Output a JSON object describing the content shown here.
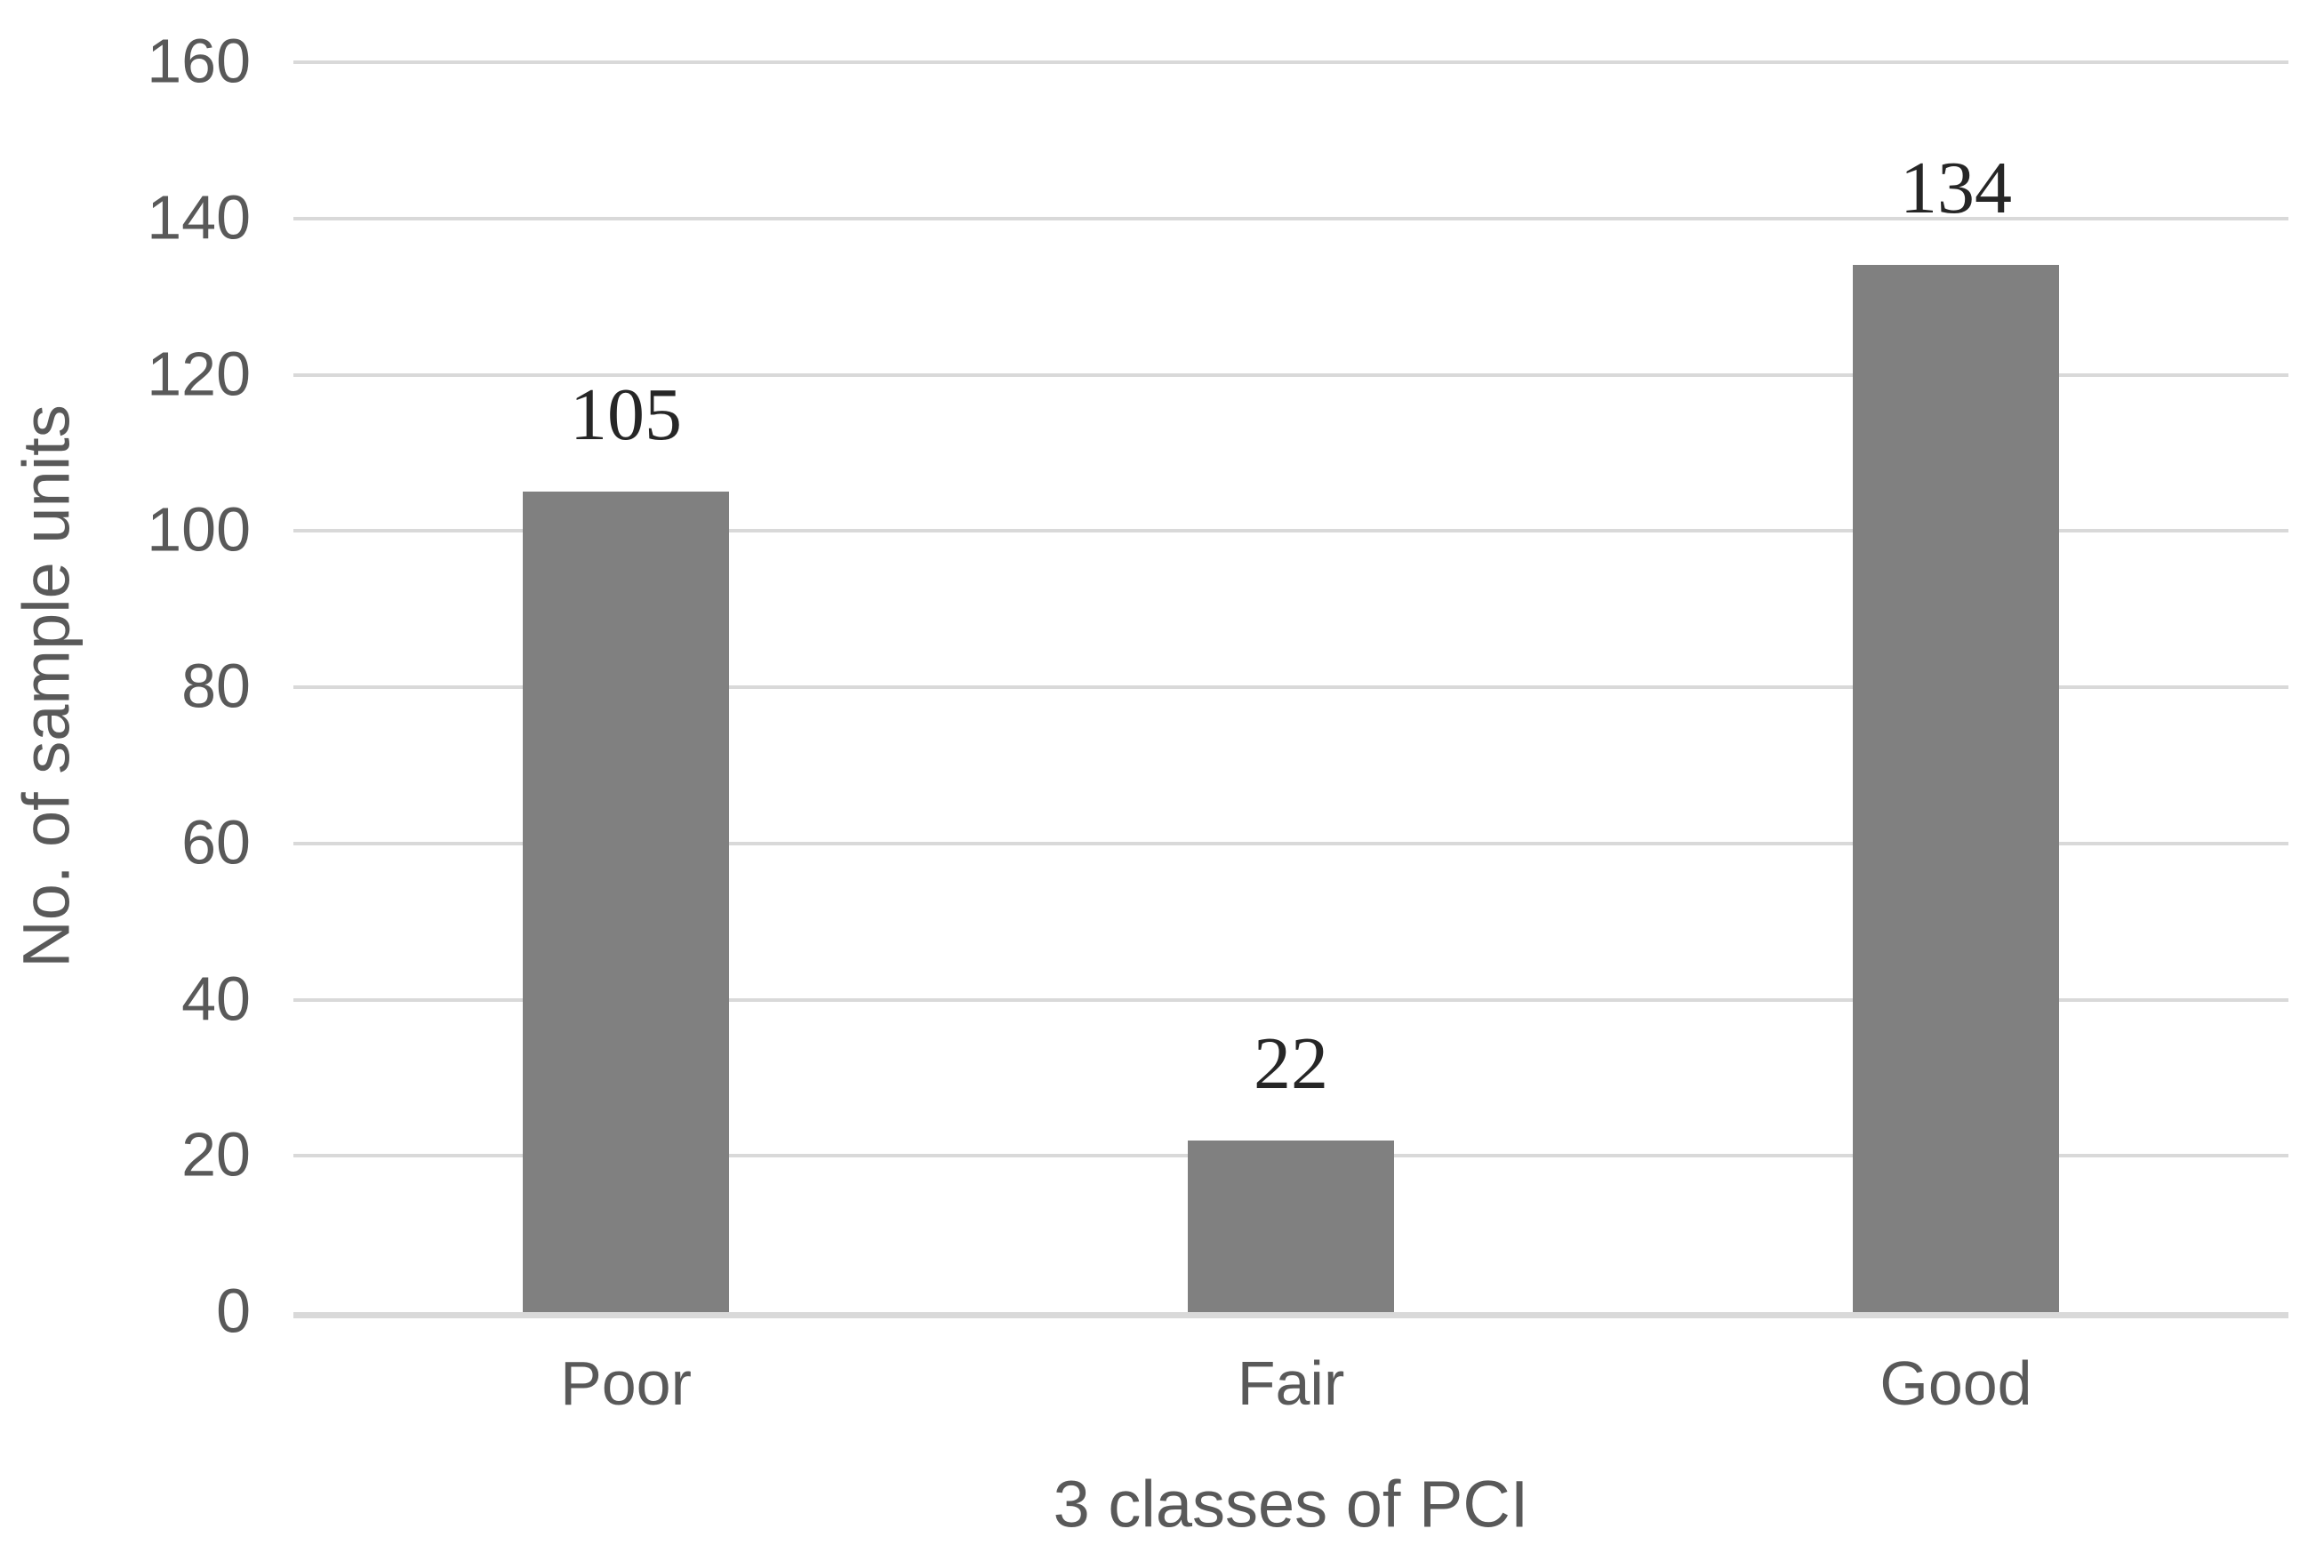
{
  "chart_data": {
    "type": "bar",
    "categories": [
      "Poor",
      "Fair",
      "Good"
    ],
    "values": [
      105,
      22,
      134
    ],
    "data_labels": [
      "105",
      "22",
      "134"
    ],
    "title": "",
    "xlabel": "3 classes of PCI",
    "ylabel": "No. of sample units",
    "ylim": [
      0,
      160
    ],
    "ytick_step": 20,
    "ytick_labels": [
      "0",
      "20",
      "40",
      "60",
      "80",
      "100",
      "120",
      "140",
      "160"
    ],
    "grid": "horizontal-only",
    "legend": "none",
    "colors": {
      "bar_fill": "#808080",
      "gridline": "#D9D9D9",
      "axis_line": "#D9D9D9",
      "tick_text": "#595959",
      "axis_title_text": "#595959",
      "category_text": "#595959",
      "data_label_text": "#262626",
      "background": "#FFFFFF"
    }
  }
}
